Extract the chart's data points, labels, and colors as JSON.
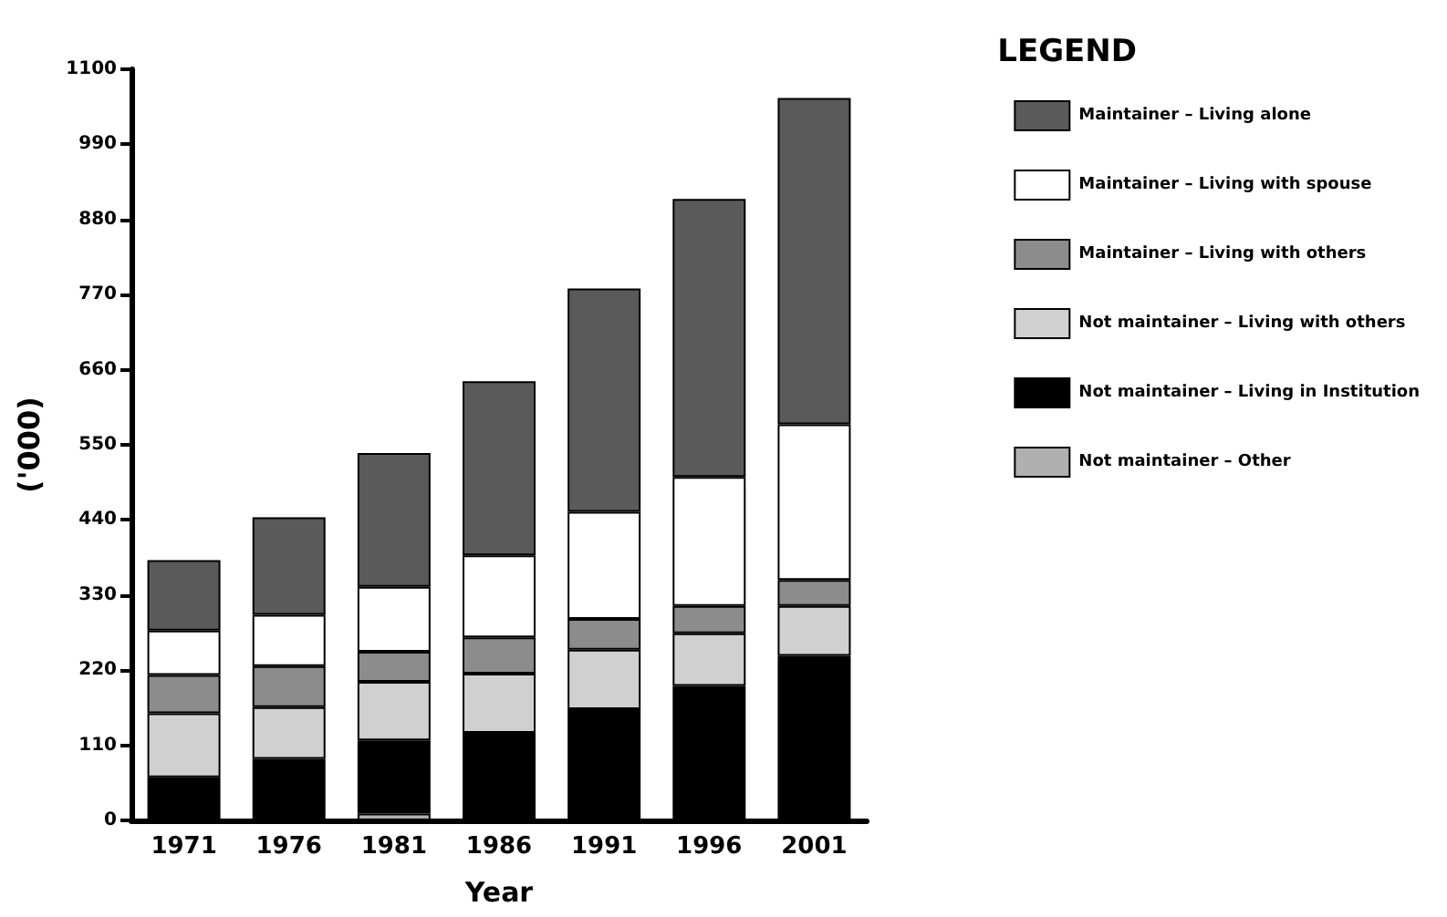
{
  "chart_data": {
    "type": "bar",
    "stacked": true,
    "xlabel": "Year",
    "ylabel": "('000)",
    "legend_title": "LEGEND",
    "legend": "right",
    "categories": [
      "1971",
      "1976",
      "1981",
      "1986",
      "1991",
      "1996",
      "2001"
    ],
    "ylim": [
      0,
      1100
    ],
    "yticks": [
      0,
      110,
      220,
      330,
      440,
      550,
      660,
      770,
      880,
      990,
      1100
    ],
    "grid": false,
    "series": [
      {
        "name": "Not maintainer – Other",
        "color": "#b0b0b0",
        "values": [
          0,
          0,
          10,
          0,
          0,
          0,
          0
        ]
      },
      {
        "name": "Not maintainer – Living in Institution",
        "color": "#000000",
        "values": [
          63,
          90,
          107,
          128,
          163,
          197,
          241
        ]
      },
      {
        "name": "Not maintainer – Living with others",
        "color": "#d0d0d0",
        "values": [
          94,
          76,
          86,
          87,
          87,
          77,
          73
        ]
      },
      {
        "name": "Maintainer – Living with others",
        "color": "#8c8c8c",
        "values": [
          56,
          60,
          44,
          53,
          45,
          40,
          38
        ]
      },
      {
        "name": "Maintainer – Living with spouse",
        "color": "#ffffff",
        "values": [
          65,
          75,
          95,
          120,
          157,
          189,
          228
        ]
      },
      {
        "name": "Maintainer – Living alone",
        "color": "#5a5a5a",
        "values": [
          103,
          143,
          196,
          255,
          327,
          407,
          478
        ]
      }
    ]
  }
}
